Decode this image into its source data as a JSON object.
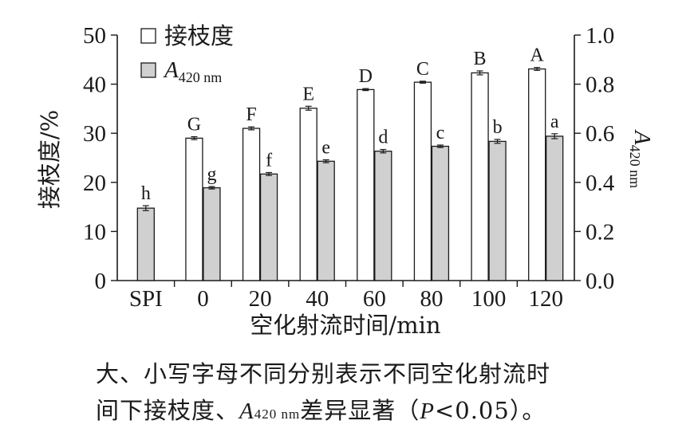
{
  "chart_data": {
    "type": "bar",
    "categories": [
      "SPI",
      "0",
      "20",
      "40",
      "60",
      "80",
      "100",
      "120"
    ],
    "xlabel": "空化射流时间/min",
    "ylabel": "接枝度/%",
    "y2label": {
      "main": "A",
      "sub": "420 nm"
    },
    "ylim": [
      0,
      50
    ],
    "y2lim": [
      0.0,
      1.0
    ],
    "yticks": [
      "0",
      "10",
      "20",
      "30",
      "40",
      "50"
    ],
    "y2ticks": [
      "0.0",
      "0.2",
      "0.4",
      "0.6",
      "0.8",
      "1.0"
    ],
    "series": [
      {
        "name": "接枝度",
        "axis": "left",
        "fill": "#ffffff",
        "values": [
          null,
          29.0,
          31.0,
          35.1,
          38.9,
          40.4,
          42.3,
          43.1
        ],
        "errors": [
          null,
          0.3,
          0.3,
          0.4,
          0.2,
          0.2,
          0.4,
          0.3
        ],
        "labels": [
          "",
          "G",
          "F",
          "E",
          "D",
          "C",
          "B",
          "A"
        ]
      },
      {
        "name_main": "A",
        "name_sub": "420 nm",
        "axis": "right",
        "fill": "#d0d0d0",
        "values": [
          0.295,
          0.378,
          0.434,
          0.486,
          0.527,
          0.547,
          0.567,
          0.588
        ],
        "errors": [
          0.01,
          0.005,
          0.006,
          0.006,
          0.007,
          0.005,
          0.008,
          0.01
        ],
        "labels": [
          "h",
          "g",
          "f",
          "e",
          "d",
          "c",
          "b",
          "a"
        ]
      }
    ],
    "legend_position": "top-left"
  },
  "note": {
    "line1": "大、小写字母不同分别表示不同空化射流时",
    "line2_pre": "间下接枝度、",
    "line2_A": "A",
    "line2_sub": "420 nm",
    "line2_mid": "差异显著（",
    "line2_P": "P",
    "line2_post": "<0.05）。"
  }
}
